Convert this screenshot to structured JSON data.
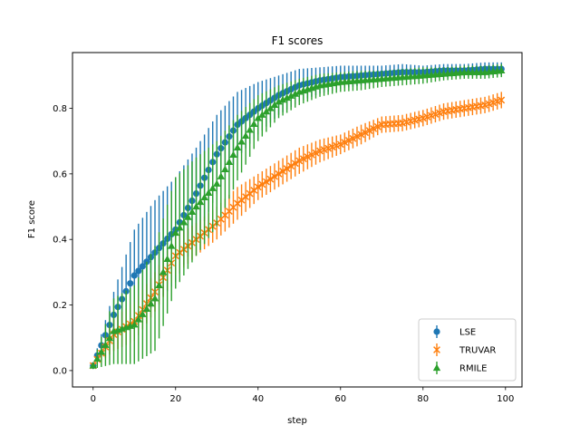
{
  "chart_data": {
    "type": "scatter",
    "title": "F1 scores",
    "xlabel": "step",
    "ylabel": "F1 score",
    "xlim": [
      -5,
      104
    ],
    "ylim": [
      -0.05,
      0.97
    ],
    "xticks": [
      0,
      20,
      40,
      60,
      80,
      100
    ],
    "yticks": [
      0.0,
      0.2,
      0.4,
      0.6,
      0.8
    ],
    "legend_position": "lower-right",
    "error_bars": true,
    "series": [
      {
        "name": "LSE",
        "color": "#1f77b4",
        "marker": "circle",
        "x": [
          0,
          5,
          10,
          15,
          20,
          25,
          30,
          35,
          40,
          45,
          50,
          55,
          60,
          65,
          70,
          75,
          80,
          85,
          90,
          95,
          99
        ],
        "y": [
          0.015,
          0.17,
          0.29,
          0.36,
          0.43,
          0.54,
          0.66,
          0.75,
          0.8,
          0.84,
          0.87,
          0.885,
          0.895,
          0.9,
          0.905,
          0.91,
          0.91,
          0.915,
          0.915,
          0.92,
          0.92
        ],
        "err": [
          0.01,
          0.07,
          0.14,
          0.16,
          0.16,
          0.14,
          0.12,
          0.1,
          0.08,
          0.06,
          0.05,
          0.04,
          0.035,
          0.03,
          0.025,
          0.025,
          0.02,
          0.02,
          0.02,
          0.02,
          0.02
        ]
      },
      {
        "name": "TRUVAR",
        "color": "#ff7f0e",
        "marker": "x",
        "x": [
          0,
          5,
          10,
          15,
          20,
          25,
          30,
          35,
          40,
          45,
          50,
          55,
          60,
          65,
          70,
          75,
          80,
          85,
          90,
          95,
          99
        ],
        "y": [
          0.015,
          0.11,
          0.15,
          0.24,
          0.35,
          0.4,
          0.45,
          0.51,
          0.56,
          0.6,
          0.64,
          0.67,
          0.69,
          0.72,
          0.75,
          0.755,
          0.77,
          0.79,
          0.8,
          0.81,
          0.825
        ],
        "err": [
          0.01,
          0.05,
          0.06,
          0.06,
          0.06,
          0.05,
          0.05,
          0.05,
          0.04,
          0.04,
          0.04,
          0.035,
          0.03,
          0.03,
          0.025,
          0.025,
          0.025,
          0.025,
          0.025,
          0.025,
          0.025
        ]
      },
      {
        "name": "RMILE",
        "color": "#2ca02c",
        "marker": "triangle",
        "x": [
          0,
          5,
          10,
          15,
          20,
          25,
          30,
          35,
          40,
          45,
          50,
          55,
          60,
          65,
          70,
          75,
          80,
          85,
          90,
          95,
          99
        ],
        "y": [
          0.015,
          0.12,
          0.14,
          0.22,
          0.42,
          0.5,
          0.57,
          0.68,
          0.77,
          0.82,
          0.85,
          0.87,
          0.88,
          0.885,
          0.89,
          0.895,
          0.9,
          0.905,
          0.91,
          0.91,
          0.915
        ],
        "err": [
          0.01,
          0.1,
          0.12,
          0.16,
          0.17,
          0.15,
          0.13,
          0.1,
          0.07,
          0.05,
          0.04,
          0.035,
          0.03,
          0.03,
          0.025,
          0.025,
          0.025,
          0.02,
          0.02,
          0.02,
          0.02
        ]
      }
    ]
  }
}
